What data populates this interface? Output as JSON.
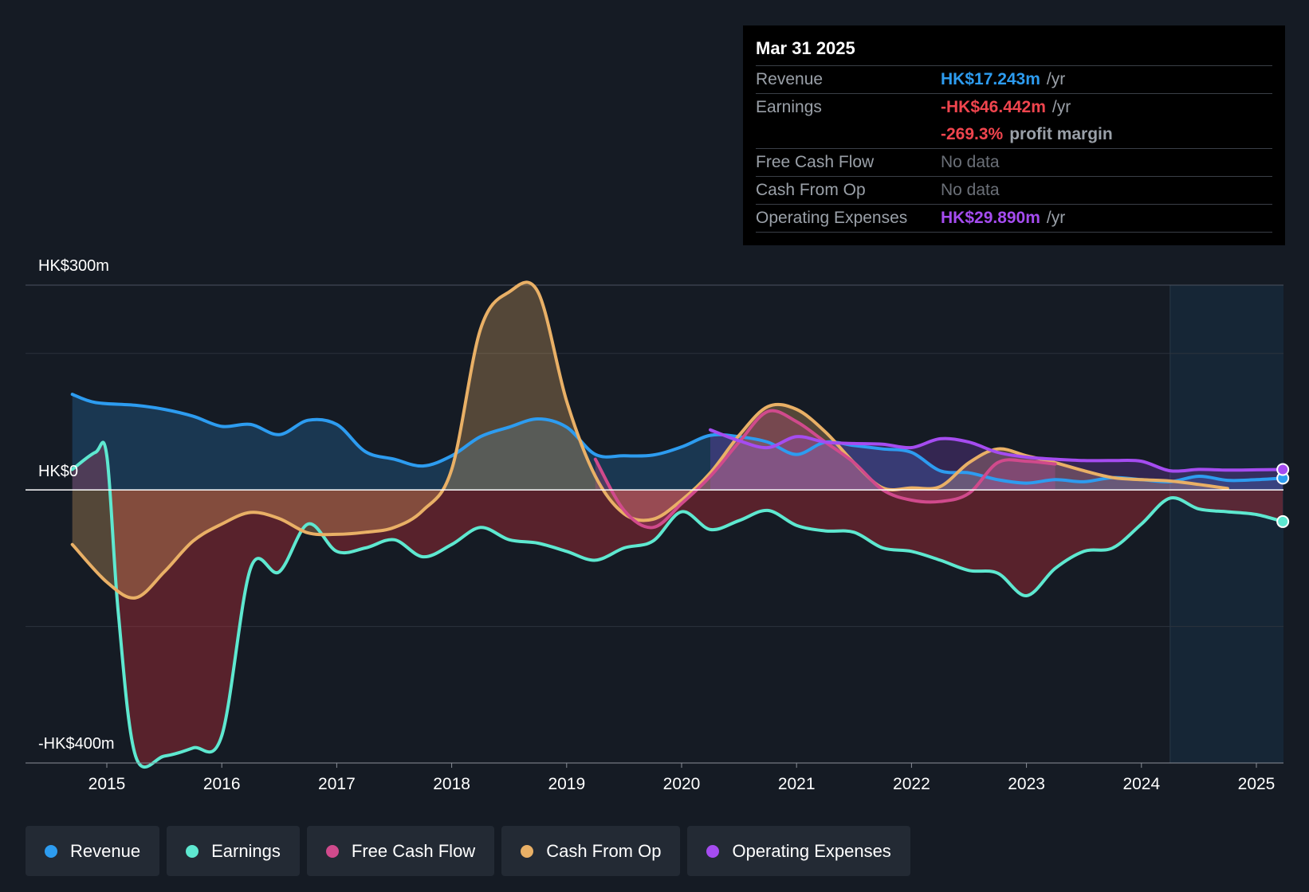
{
  "tooltip": {
    "date": "Mar 31 2025",
    "rows": {
      "revenue": {
        "label": "Revenue",
        "value": "HK$17.243m",
        "unit": "/yr"
      },
      "earnings": {
        "label": "Earnings",
        "value": "-HK$46.442m",
        "unit": "/yr"
      },
      "margin": {
        "value": "-269.3%",
        "unit": "profit margin"
      },
      "fcf": {
        "label": "Free Cash Flow",
        "value": "No data"
      },
      "cfo": {
        "label": "Cash From Op",
        "value": "No data"
      },
      "opex": {
        "label": "Operating Expenses",
        "value": "HK$29.890m",
        "unit": "/yr"
      }
    }
  },
  "legend": [
    {
      "label": "Revenue",
      "color": "#2d9cf0"
    },
    {
      "label": "Earnings",
      "color": "#5ee8d0"
    },
    {
      "label": "Free Cash Flow",
      "color": "#d04a8c"
    },
    {
      "label": "Cash From Op",
      "color": "#e9b066"
    },
    {
      "label": "Operating Expenses",
      "color": "#a54cf0"
    }
  ],
  "colors": {
    "revenue": "#2d9cf0",
    "earnings": "#5ee8d0",
    "fcf": "#d04a8c",
    "cfo": "#e9b066",
    "opex": "#a54cf0",
    "negative_value": "#f0454e",
    "nodata": "#6b7078"
  },
  "chart_data": {
    "type": "line",
    "title": "",
    "ylim": [
      -400,
      300
    ],
    "y_labels": {
      "top": "HK$300m",
      "zero": "HK$0",
      "bottom": "-HK$400m"
    },
    "x_ticks": [
      "2015",
      "2016",
      "2017",
      "2018",
      "2019",
      "2020",
      "2021",
      "2022",
      "2023",
      "2024",
      "2025"
    ],
    "x_tick_values": [
      2015,
      2016,
      2017,
      2018,
      2019,
      2020,
      2021,
      2022,
      2023,
      2024,
      2025
    ],
    "xlim": [
      2014.3,
      2025.23
    ],
    "forecast_start": 2024.25,
    "series": [
      {
        "name": "Revenue",
        "key": "revenue",
        "x": [
          2014.7,
          2014.9,
          2015.25,
          2015.5,
          2015.75,
          2016.0,
          2016.25,
          2016.5,
          2016.75,
          2017.0,
          2017.25,
          2017.5,
          2017.75,
          2018.0,
          2018.25,
          2018.5,
          2018.75,
          2019.0,
          2019.25,
          2019.5,
          2019.75,
          2020.0,
          2020.25,
          2020.5,
          2020.75,
          2021.0,
          2021.25,
          2021.5,
          2021.75,
          2022.0,
          2022.25,
          2022.5,
          2022.75,
          2023.0,
          2023.25,
          2023.5,
          2023.75,
          2024.0,
          2024.25,
          2024.5,
          2024.75,
          2025.0,
          2025.23
        ],
        "values": [
          140,
          128,
          124,
          118,
          108,
          93,
          96,
          81,
          102,
          96,
          56,
          45,
          35,
          50,
          78,
          92,
          104,
          92,
          52,
          50,
          51,
          63,
          80,
          78,
          70,
          52,
          70,
          65,
          60,
          55,
          28,
          25,
          15,
          10,
          15,
          12,
          18,
          15,
          12,
          20,
          14,
          15,
          17.2
        ]
      },
      {
        "name": "Earnings",
        "key": "earnings",
        "x": [
          2014.7,
          2014.9,
          2015.0,
          2015.1,
          2015.25,
          2015.5,
          2015.75,
          2016.0,
          2016.25,
          2016.5,
          2016.75,
          2017.0,
          2017.25,
          2017.5,
          2017.75,
          2018.0,
          2018.25,
          2018.5,
          2018.75,
          2019.0,
          2019.25,
          2019.5,
          2019.75,
          2020.0,
          2020.25,
          2020.5,
          2020.75,
          2021.0,
          2021.25,
          2021.5,
          2021.75,
          2022.0,
          2022.25,
          2022.5,
          2022.75,
          2023.0,
          2023.25,
          2023.5,
          2023.75,
          2024.0,
          2024.25,
          2024.5,
          2024.75,
          2025.0,
          2025.23
        ],
        "values": [
          30,
          55,
          50,
          -180,
          -390,
          -390,
          -378,
          -360,
          -115,
          -120,
          -50,
          -90,
          -85,
          -73,
          -98,
          -80,
          -55,
          -73,
          -78,
          -90,
          -103,
          -85,
          -75,
          -32,
          -58,
          -45,
          -30,
          -52,
          -60,
          -62,
          -85,
          -90,
          -103,
          -118,
          -122,
          -155,
          -115,
          -90,
          -85,
          -50,
          -12,
          -28,
          -32,
          -36,
          -46.4
        ]
      },
      {
        "name": "Free Cash Flow",
        "key": "fcf",
        "x": [
          2019.25,
          2019.5,
          2019.75,
          2020.0,
          2020.25,
          2020.5,
          2020.75,
          2021.0,
          2021.25,
          2021.5,
          2021.75,
          2022.0,
          2022.25,
          2022.5,
          2022.75,
          2023.0,
          2023.25
        ],
        "values": [
          45,
          -30,
          -55,
          -20,
          20,
          70,
          115,
          100,
          70,
          40,
          0,
          -15,
          -17,
          -5,
          40,
          42,
          38
        ]
      },
      {
        "name": "Cash From Op",
        "key": "cfo",
        "x": [
          2014.7,
          2015.0,
          2015.25,
          2015.5,
          2015.75,
          2016.0,
          2016.25,
          2016.5,
          2016.75,
          2017.0,
          2017.25,
          2017.5,
          2017.75,
          2018.0,
          2018.25,
          2018.5,
          2018.75,
          2019.0,
          2019.25,
          2019.5,
          2019.75,
          2020.0,
          2020.25,
          2020.5,
          2020.75,
          2021.0,
          2021.25,
          2021.5,
          2021.75,
          2022.0,
          2022.25,
          2022.5,
          2022.75,
          2023.0,
          2023.25,
          2023.5,
          2023.75,
          2024.0,
          2024.25,
          2024.5,
          2024.75
        ],
        "values": [
          -80,
          -135,
          -158,
          -120,
          -75,
          -50,
          -33,
          -42,
          -63,
          -65,
          -62,
          -55,
          -30,
          30,
          235,
          290,
          290,
          130,
          20,
          -35,
          -43,
          -15,
          25,
          80,
          122,
          118,
          85,
          40,
          3,
          3,
          5,
          40,
          60,
          50,
          40,
          28,
          18,
          15,
          13,
          8,
          2
        ]
      },
      {
        "name": "Operating Expenses",
        "key": "opex",
        "x": [
          2020.25,
          2020.5,
          2020.75,
          2021.0,
          2021.25,
          2021.5,
          2021.75,
          2022.0,
          2022.25,
          2022.5,
          2022.75,
          2023.0,
          2023.25,
          2023.5,
          2023.75,
          2024.0,
          2024.25,
          2024.5,
          2024.75,
          2025.0,
          2025.23
        ],
        "values": [
          88,
          72,
          62,
          78,
          70,
          68,
          67,
          62,
          75,
          70,
          55,
          48,
          45,
          43,
          43,
          42,
          28,
          30,
          29,
          29.5,
          29.9
        ]
      }
    ]
  }
}
